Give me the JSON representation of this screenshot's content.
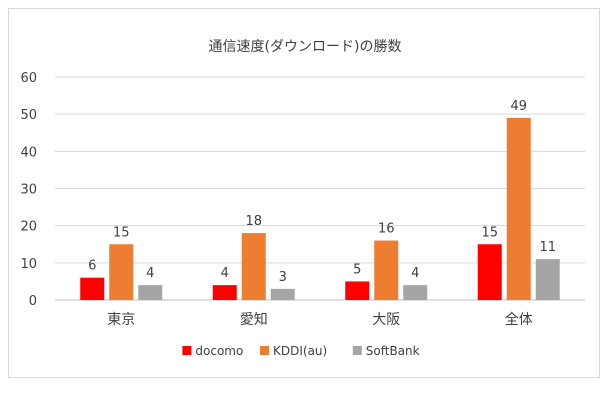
{
  "chart_data": {
    "type": "bar",
    "title": "通信速度(ダウンロード)の勝数",
    "xlabel": "",
    "ylabel": "",
    "categories": [
      "東京",
      "愛知",
      "大阪",
      "全体"
    ],
    "series": [
      {
        "name": "docomo",
        "color": "#ff0000",
        "values": [
          6,
          4,
          5,
          15
        ]
      },
      {
        "name": "KDDI(au)",
        "color": "#ed7d31",
        "values": [
          15,
          18,
          16,
          49
        ]
      },
      {
        "name": "SoftBank",
        "color": "#a5a5a5",
        "values": [
          4,
          3,
          4,
          11
        ]
      }
    ],
    "ylim": [
      0,
      60
    ],
    "yticks": [
      0,
      10,
      20,
      30,
      40,
      50,
      60
    ],
    "grid": true,
    "legend_position": "bottom"
  }
}
